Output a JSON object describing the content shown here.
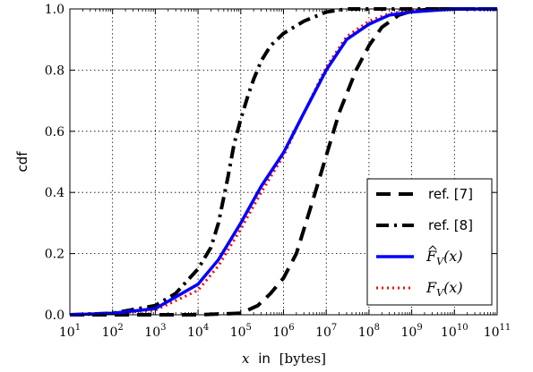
{
  "chart_data": {
    "type": "line",
    "title": "",
    "xlabel": {
      "var": "x",
      "word": "in",
      "unit": "[bytes]"
    },
    "ylabel": "cdf",
    "x_scale": "log",
    "xlim": [
      10,
      100000000000
    ],
    "ylim": [
      0.0,
      1.0
    ],
    "grid": true,
    "legend_position": "lower-right",
    "x_ticks": [
      {
        "value": 10,
        "base": "10",
        "exp": "1"
      },
      {
        "value": 100,
        "base": "10",
        "exp": "2"
      },
      {
        "value": 1000,
        "base": "10",
        "exp": "3"
      },
      {
        "value": 10000,
        "base": "10",
        "exp": "4"
      },
      {
        "value": 100000,
        "base": "10",
        "exp": "5"
      },
      {
        "value": 1000000,
        "base": "10",
        "exp": "6"
      },
      {
        "value": 10000000,
        "base": "10",
        "exp": "7"
      },
      {
        "value": 100000000,
        "base": "10",
        "exp": "8"
      },
      {
        "value": 1000000000,
        "base": "10",
        "exp": "9"
      },
      {
        "value": 10000000000,
        "base": "10",
        "exp": "10"
      },
      {
        "value": 100000000000,
        "base": "10",
        "exp": "11"
      }
    ],
    "y_ticks": [
      {
        "value": 0.0,
        "label": "0.0"
      },
      {
        "value": 0.2,
        "label": "0.2"
      },
      {
        "value": 0.4,
        "label": "0.4"
      },
      {
        "value": 0.6,
        "label": "0.6"
      },
      {
        "value": 0.8,
        "label": "0.8"
      },
      {
        "value": 1.0,
        "label": "1.0"
      }
    ],
    "series": [
      {
        "name": "ref. [7]",
        "color": "#000000",
        "style": "dashed",
        "x": [
          10,
          10000,
          100000,
          250000,
          500000,
          1000000,
          2000000,
          5000000,
          10000000,
          20000000,
          50000000,
          100000000,
          200000000,
          500000000,
          1000000000,
          3000000000,
          10000000000,
          100000000000
        ],
        "y": [
          0.0,
          0.0,
          0.005,
          0.03,
          0.07,
          0.12,
          0.2,
          0.38,
          0.52,
          0.66,
          0.8,
          0.88,
          0.94,
          0.98,
          0.993,
          1.0,
          1.0,
          1.0
        ]
      },
      {
        "name": "ref. [8]",
        "color": "#000000",
        "style": "dashdot",
        "x": [
          10,
          100,
          1000,
          3000,
          10000,
          20000,
          30000,
          50000,
          70000,
          100000,
          150000,
          200000,
          300000,
          500000,
          1000000,
          3000000,
          10000000,
          30000000,
          100000000000
        ],
        "y": [
          0.0,
          0.005,
          0.03,
          0.07,
          0.15,
          0.22,
          0.3,
          0.45,
          0.56,
          0.64,
          0.72,
          0.77,
          0.83,
          0.88,
          0.92,
          0.96,
          0.99,
          1.0,
          1.0
        ]
      },
      {
        "name_tex": {
          "hat": true,
          "letter": "F",
          "sub": "V",
          "arg": "(x)"
        },
        "color": "#0000ff",
        "style": "solid",
        "x": [
          10,
          100,
          1000,
          10000,
          30000,
          100000,
          300000,
          1000000,
          3000000,
          10000000,
          30000000,
          100000000,
          300000000,
          1000000000,
          10000000000,
          100000000000
        ],
        "y": [
          0.0,
          0.005,
          0.02,
          0.1,
          0.18,
          0.3,
          0.42,
          0.53,
          0.66,
          0.8,
          0.9,
          0.95,
          0.98,
          0.99,
          1.0,
          1.0
        ]
      },
      {
        "name_tex": {
          "hat": false,
          "letter": "F",
          "sub": "V",
          "arg": "(x)"
        },
        "color": "#ff0000",
        "style": "dotted",
        "x": [
          10,
          100,
          1000,
          10000,
          30000,
          100000,
          300000,
          1000000,
          3000000,
          10000000,
          30000000,
          100000000,
          300000000,
          1000000000,
          10000000000,
          100000000000
        ],
        "y": [
          0.0,
          0.004,
          0.015,
          0.08,
          0.16,
          0.28,
          0.4,
          0.52,
          0.66,
          0.81,
          0.91,
          0.96,
          0.985,
          0.995,
          1.0,
          1.0
        ]
      }
    ]
  }
}
